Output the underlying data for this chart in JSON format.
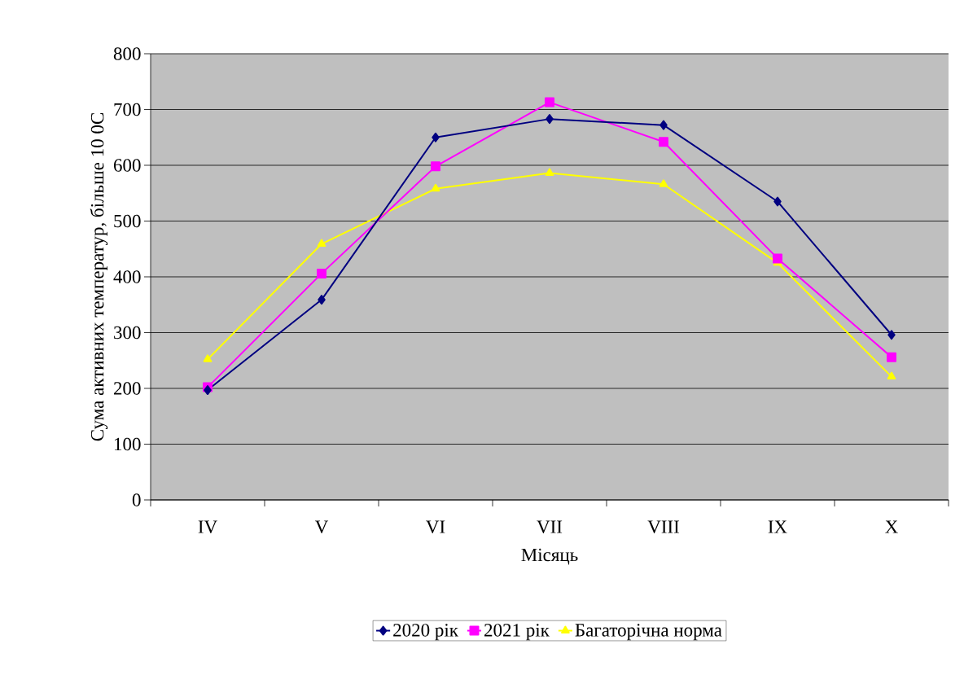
{
  "chart_data": {
    "type": "line",
    "xlabel": "Місяць",
    "ylabel": "Сума активних температур, більше 10 0С",
    "categories": [
      "IV",
      "V",
      "VI",
      "VII",
      "VIII",
      "IX",
      "X"
    ],
    "series": [
      {
        "name": "2020 рік",
        "color": "#000080",
        "marker": "diamond",
        "values": [
          197,
          359,
          650,
          683,
          672,
          535,
          296
        ]
      },
      {
        "name": "2021 рік",
        "color": "#ff00ff",
        "marker": "square",
        "values": [
          202,
          406,
          598,
          713,
          642,
          433,
          256
        ]
      },
      {
        "name": "Багаторічна норма",
        "color": "#ffff00",
        "marker": "triangle",
        "values": [
          252,
          459,
          558,
          586,
          566,
          425,
          221
        ]
      }
    ],
    "ylim": [
      0,
      800
    ],
    "yticks": [
      0,
      100,
      200,
      300,
      400,
      500,
      600,
      700,
      800
    ],
    "grid": "y",
    "legend": "bottom",
    "line_style": "solid"
  }
}
